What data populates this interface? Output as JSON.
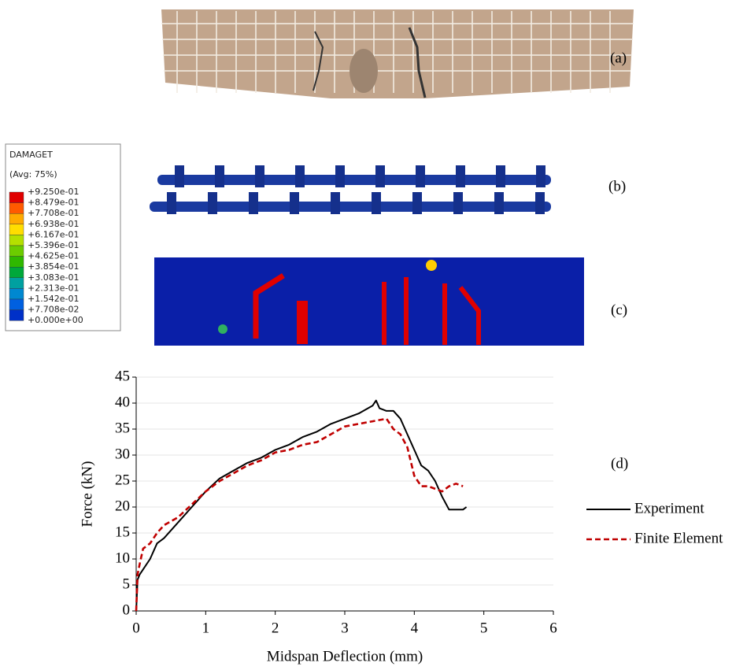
{
  "panel_labels": [
    "(a)",
    "(b)",
    "(c)",
    "(d)"
  ],
  "damage_legend": {
    "title": "DAMAGET",
    "subtitle": "(Avg: 75%)",
    "levels": [
      "+9.250e-01",
      "+8.479e-01",
      "+7.708e-01",
      "+6.938e-01",
      "+6.167e-01",
      "+5.396e-01",
      "+4.625e-01",
      "+3.854e-01",
      "+3.083e-01",
      "+2.313e-01",
      "+1.542e-01",
      "+7.708e-02",
      "+0.000e+00"
    ],
    "colors": [
      "#e00000",
      "#ff5a00",
      "#ffaa00",
      "#ffdd00",
      "#b4e000",
      "#6ccc00",
      "#2fb800",
      "#00a83a",
      "#00a0a0",
      "#0088d0",
      "#0060e0",
      "#0030c8"
    ]
  },
  "chart_data": {
    "type": "line",
    "x_label": "Midspan Deflection (mm)",
    "y_label": "Force (kN)",
    "xlim": [
      0,
      6
    ],
    "xticks": [
      0,
      1,
      2,
      3,
      4,
      5,
      6
    ],
    "ylim": [
      0,
      45
    ],
    "yticks": [
      0,
      5,
      10,
      15,
      20,
      25,
      30,
      35,
      40,
      45
    ],
    "grid": true,
    "series": [
      {
        "name": "Experiment",
        "color": "#000000",
        "dash": false,
        "x": [
          0,
          0.02,
          0.05,
          0.1,
          0.2,
          0.3,
          0.4,
          0.5,
          0.6,
          0.8,
          1.0,
          1.2,
          1.4,
          1.6,
          1.8,
          2.0,
          2.2,
          2.4,
          2.6,
          2.8,
          3.0,
          3.2,
          3.4,
          3.45,
          3.5,
          3.6,
          3.7,
          3.8,
          3.9,
          4.0,
          4.1,
          4.2,
          4.3,
          4.4,
          4.5,
          4.6,
          4.7,
          4.75
        ],
        "values": [
          0,
          6,
          7,
          8,
          10,
          13,
          14,
          15.5,
          17,
          20,
          23,
          25.5,
          27,
          28.5,
          29.5,
          31,
          32,
          33.5,
          34.5,
          36,
          37,
          38,
          39.5,
          40.5,
          39,
          38.5,
          38.5,
          37,
          34,
          31,
          28,
          27,
          25,
          22,
          19.5,
          19.5,
          19.5,
          20
        ]
      },
      {
        "name": "Finite Element",
        "color": "#c00000",
        "dash": true,
        "x": [
          0,
          0.02,
          0.05,
          0.1,
          0.2,
          0.3,
          0.4,
          0.6,
          0.8,
          1.0,
          1.2,
          1.4,
          1.6,
          1.8,
          2.0,
          2.2,
          2.4,
          2.6,
          2.8,
          3.0,
          3.2,
          3.4,
          3.6,
          3.7,
          3.8,
          3.9,
          4.0,
          4.1,
          4.2,
          4.3,
          4.4,
          4.5,
          4.6,
          4.7
        ],
        "values": [
          0,
          7,
          9,
          12,
          13,
          15,
          16.5,
          18,
          20.5,
          23,
          25,
          26.5,
          28,
          29,
          30.5,
          31,
          32,
          32.5,
          34,
          35.5,
          36,
          36.5,
          37,
          35,
          34,
          31.5,
          26,
          24,
          24,
          23.5,
          23,
          24,
          24.5,
          24
        ]
      }
    ]
  }
}
